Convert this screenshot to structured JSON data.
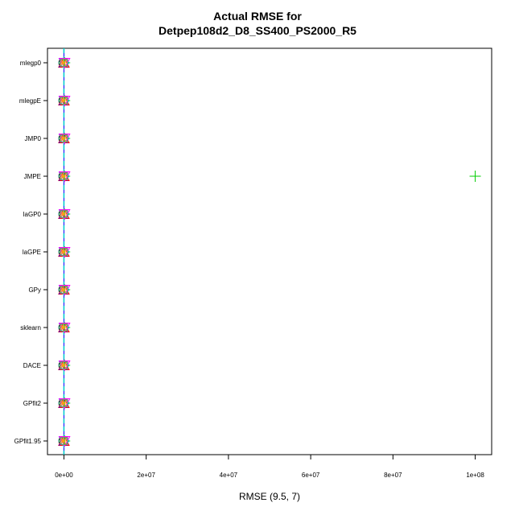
{
  "chart_data": {
    "type": "scatter",
    "title_line1": "Actual RMSE for",
    "title_line2": "Detpep108d2_D8_SS400_PS2000_R5",
    "xlabel": "RMSE (9.5, 7)",
    "ylabel": "",
    "categories": [
      "mlegp0",
      "mlegpE",
      "JMP0",
      "JMPE",
      "laGP0",
      "laGPE",
      "GPy",
      "sklearn",
      "DACE",
      "GPfit2",
      "GPfit1.95"
    ],
    "x_ticks": [
      0,
      20000000,
      40000000,
      60000000,
      80000000,
      100000000
    ],
    "x_tick_labels": [
      "0e+00",
      "2e+07",
      "4e+07",
      "6e+07",
      "8e+07",
      "1e+08"
    ],
    "xlim": [
      -4000000,
      104000000
    ],
    "vline_x": 0,
    "grid": false,
    "series_colors": [
      "#000000",
      "#ff0000",
      "#00cd00",
      "#0000ff",
      "#00cdcd",
      "#ff00ff",
      "#ffa500",
      "#808080"
    ],
    "markers": [
      "circle",
      "triangle",
      "plus",
      "x",
      "diamond",
      "triangle-down",
      "asterisk",
      "box"
    ],
    "points": [
      {
        "category": "mlegp0",
        "x": 0
      },
      {
        "category": "mlegpE",
        "x": 0
      },
      {
        "category": "JMP0",
        "x": 0
      },
      {
        "category": "JMPE",
        "x": 0
      },
      {
        "category": "JMPE",
        "x": 100000000,
        "color": "#00cd00",
        "marker": "plus"
      },
      {
        "category": "laGP0",
        "x": 0
      },
      {
        "category": "laGPE",
        "x": 0
      },
      {
        "category": "GPy",
        "x": 0
      },
      {
        "category": "sklearn",
        "x": 0
      },
      {
        "category": "DACE",
        "x": 0
      },
      {
        "category": "GPfit2",
        "x": 0
      },
      {
        "category": "GPfit1.95",
        "x": 0
      }
    ]
  }
}
